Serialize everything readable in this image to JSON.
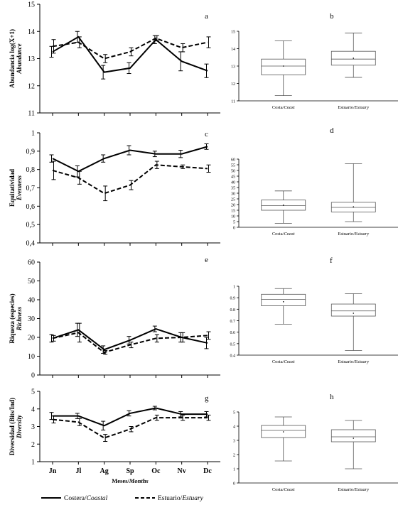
{
  "legend": {
    "coastal_main": "Costera/",
    "coastal_it": "Coastal",
    "estuary_main": "Estuario/",
    "estuary_it": "Estuary"
  },
  "chart_data": [
    {
      "id": "a",
      "type": "line",
      "letter": "a",
      "ylabel": "Abundancia log(X+1)",
      "ylabel_it": "Abundance",
      "ylim": [
        11,
        15
      ],
      "yticks": [
        11,
        12,
        13,
        14,
        15
      ],
      "x": [
        "Jn",
        "Jl",
        "Ag",
        "Sp",
        "Oc",
        "Nv",
        "Dc"
      ],
      "show_month_labels": false,
      "series": [
        {
          "key": "coastal",
          "style": "solid",
          "values": [
            13.25,
            13.8,
            12.5,
            12.65,
            13.7,
            12.9,
            12.55
          ],
          "errors": [
            0.2,
            0.2,
            0.25,
            0.2,
            0.15,
            0.35,
            0.25
          ]
        },
        {
          "key": "estuary",
          "style": "dashed",
          "values": [
            13.45,
            13.6,
            13.0,
            13.25,
            13.75,
            13.4,
            13.6
          ],
          "errors": [
            0.25,
            0.2,
            0.15,
            0.15,
            0.1,
            0.15,
            0.2
          ]
        }
      ]
    },
    {
      "id": "c",
      "type": "line",
      "letter": "c",
      "ylabel": "Equitatividad",
      "ylabel_it": "Evenness",
      "ylim": [
        0.4,
        1.0
      ],
      "yticks": [
        0.4,
        0.5,
        0.6,
        0.7,
        0.8,
        0.9,
        1.0
      ],
      "ytick_labels": [
        "0,4",
        "0,5",
        "0,6",
        "0,7",
        "0,8",
        "0,9",
        "1"
      ],
      "x": [
        "Jn",
        "Jl",
        "Ag",
        "Sp",
        "Oc",
        "Nv",
        "Dc"
      ],
      "show_month_labels": false,
      "series": [
        {
          "key": "coastal",
          "style": "solid",
          "values": [
            0.86,
            0.79,
            0.86,
            0.905,
            0.885,
            0.885,
            0.925
          ],
          "errors": [
            0.02,
            0.03,
            0.02,
            0.025,
            0.015,
            0.02,
            0.015
          ]
        },
        {
          "key": "estuary",
          "style": "dashed",
          "values": [
            0.795,
            0.755,
            0.67,
            0.715,
            0.825,
            0.815,
            0.805
          ],
          "errors": [
            0.05,
            0.035,
            0.04,
            0.025,
            0.02,
            0.01,
            0.02
          ]
        }
      ]
    },
    {
      "id": "e",
      "type": "line",
      "letter": "e",
      "ylabel": "Riqueza (especies)",
      "ylabel_it": "Richness",
      "ylim": [
        0,
        60
      ],
      "yticks": [
        0,
        10,
        20,
        30,
        40,
        50,
        60
      ],
      "x": [
        "Jn",
        "Jl",
        "Ag",
        "Sp",
        "Oc",
        "Nv",
        "Dc"
      ],
      "show_month_labels": false,
      "series": [
        {
          "key": "coastal",
          "style": "solid",
          "values": [
            19.5,
            24.0,
            13.5,
            18.5,
            24.5,
            20.0,
            17.0
          ],
          "errors": [
            2.0,
            3.5,
            2.0,
            2.0,
            1.5,
            2.5,
            3.0
          ]
        },
        {
          "key": "estuary",
          "style": "dashed",
          "values": [
            19.5,
            22.5,
            12.0,
            16.0,
            19.5,
            20.0,
            21.0
          ],
          "errors": [
            1.5,
            5.0,
            1.0,
            1.5,
            2.0,
            2.5,
            2.0
          ]
        }
      ]
    },
    {
      "id": "g",
      "type": "line",
      "letter": "g",
      "ylabel": "Diversidad (Bits/Ind)",
      "ylabel_it": "Diversity",
      "ylim": [
        1,
        5
      ],
      "yticks": [
        1,
        2,
        3,
        4,
        5
      ],
      "x": [
        "Jn",
        "Jl",
        "Ag",
        "Sp",
        "Oc",
        "Nv",
        "Dc"
      ],
      "show_month_labels": true,
      "xlabel": "Meses/",
      "xlabel_it": "Months",
      "series": [
        {
          "key": "coastal",
          "style": "solid",
          "values": [
            3.6,
            3.6,
            3.05,
            3.75,
            4.05,
            3.7,
            3.7
          ],
          "errors": [
            0.2,
            0.15,
            0.25,
            0.15,
            0.1,
            0.15,
            0.15
          ]
        },
        {
          "key": "estuary",
          "style": "dashed",
          "values": [
            3.4,
            3.25,
            2.35,
            2.85,
            3.5,
            3.5,
            3.5
          ],
          "errors": [
            0.2,
            0.2,
            0.2,
            0.15,
            0.15,
            0.15,
            0.15
          ]
        }
      ]
    },
    {
      "id": "b",
      "type": "box",
      "letter": "b",
      "ylim": [
        11,
        15
      ],
      "yticks": [
        11,
        12,
        13,
        14,
        15
      ],
      "categories": [
        {
          "main": "Costa/",
          "it": "Coast"
        },
        {
          "main": "Estuario/",
          "it": "Estuary"
        }
      ],
      "boxes": [
        {
          "min": 11.3,
          "q1": 12.5,
          "median": 13.0,
          "q3": 13.4,
          "max": 14.45,
          "mean": 13.0
        },
        {
          "min": 12.35,
          "q1": 13.05,
          "median": 13.4,
          "q3": 13.85,
          "max": 14.9,
          "mean": 13.45
        }
      ]
    },
    {
      "id": "d",
      "type": "box",
      "letter": "d",
      "ylim": [
        0,
        60
      ],
      "yticks": [
        0,
        5,
        10,
        15,
        20,
        25,
        30,
        35,
        40,
        45,
        50,
        55,
        60
      ],
      "categories": [
        {
          "main": "Costa/",
          "it": "Coast"
        },
        {
          "main": "Estuario/",
          "it": "Estuary"
        }
      ],
      "boxes": [
        {
          "min": 3.5,
          "q1": 15.0,
          "median": 19.0,
          "q3": 24.0,
          "max": 32.0,
          "mean": 19.5
        },
        {
          "min": 5.0,
          "q1": 13.5,
          "median": 17.5,
          "q3": 22.0,
          "max": 56.0,
          "mean": 18.0
        }
      ]
    },
    {
      "id": "f",
      "type": "box",
      "letter": "f",
      "ylim": [
        0.4,
        1.0
      ],
      "yticks": [
        0.4,
        0.5,
        0.6,
        0.7,
        0.8,
        0.9,
        1.0
      ],
      "ytick_labels": [
        "0.4",
        "0.5",
        "0.6",
        "0.7",
        "0.8",
        "0.9",
        "1"
      ],
      "categories": [
        {
          "main": "Costa/",
          "it": "Coast"
        },
        {
          "main": "Estuario/",
          "it": "Estuary"
        }
      ],
      "boxes": [
        {
          "min": 0.67,
          "q1": 0.83,
          "median": 0.885,
          "q3": 0.93,
          "max": 0.98,
          "mean": 0.865
        },
        {
          "min": 0.44,
          "q1": 0.74,
          "median": 0.785,
          "q3": 0.845,
          "max": 0.935,
          "mean": 0.765
        }
      ]
    },
    {
      "id": "h",
      "type": "box",
      "letter": "h",
      "ylim": [
        0,
        5
      ],
      "yticks": [
        0,
        1,
        2,
        3,
        4,
        5
      ],
      "categories": [
        {
          "main": "Costa/",
          "it": "Coast"
        },
        {
          "main": "Estuario/",
          "it": "Estuary"
        }
      ],
      "boxes": [
        {
          "min": 1.55,
          "q1": 3.2,
          "median": 3.7,
          "q3": 4.05,
          "max": 4.65,
          "mean": 3.6
        },
        {
          "min": 1.0,
          "q1": 2.9,
          "median": 3.25,
          "q3": 3.75,
          "max": 4.4,
          "mean": 3.15
        }
      ]
    }
  ]
}
